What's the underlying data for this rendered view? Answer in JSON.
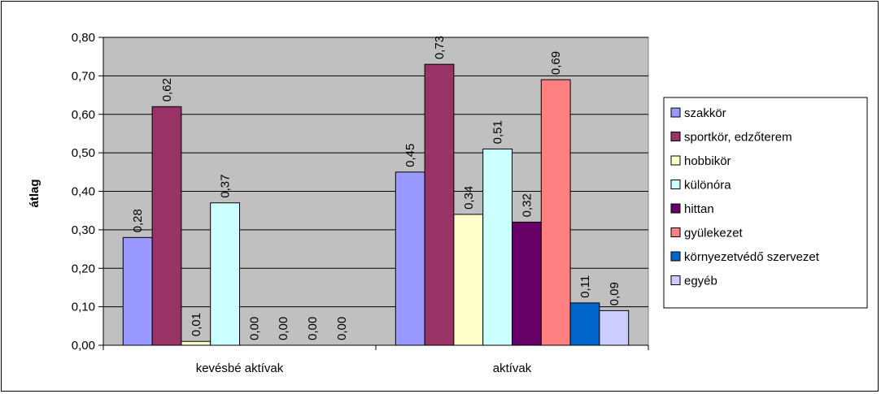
{
  "chart_data": {
    "type": "bar",
    "title": "",
    "xlabel": "",
    "ylabel": "átlag",
    "ylim": [
      0,
      0.8
    ],
    "yticks": [
      "0,00",
      "0,10",
      "0,20",
      "0,30",
      "0,40",
      "0,50",
      "0,60",
      "0,70",
      "0,80"
    ],
    "grid": true,
    "legend_position": "right",
    "categories": [
      "kevésbé aktívak",
      "aktívak"
    ],
    "series": [
      {
        "name": "szakkör",
        "color": "#9999ff",
        "values": [
          0.28,
          0.45
        ],
        "labels": [
          "0,28",
          "0,45"
        ]
      },
      {
        "name": "sportkör, edzőterem",
        "color": "#993366",
        "values": [
          0.62,
          0.73
        ],
        "labels": [
          "0,62",
          "0,73"
        ]
      },
      {
        "name": "hobbikör",
        "color": "#ffffcc",
        "values": [
          0.01,
          0.34
        ],
        "labels": [
          "0,01",
          "0,34"
        ]
      },
      {
        "name": "különóra",
        "color": "#ccffff",
        "values": [
          0.37,
          0.51
        ],
        "labels": [
          "0,37",
          "0,51"
        ]
      },
      {
        "name": "hittan",
        "color": "#660066",
        "values": [
          0.0,
          0.32
        ],
        "labels": [
          "0,00",
          "0,32"
        ]
      },
      {
        "name": "gyülekezet",
        "color": "#ff8080",
        "values": [
          0.0,
          0.69
        ],
        "labels": [
          "0,00",
          "0,69"
        ]
      },
      {
        "name": "környezetvédő szervezet",
        "color": "#0066cc",
        "values": [
          0.0,
          0.11
        ],
        "labels": [
          "0,00",
          "0,11"
        ]
      },
      {
        "name": "egyéb",
        "color": "#ccccff",
        "values": [
          0.0,
          0.09
        ],
        "labels": [
          "0,00",
          "0,09"
        ]
      }
    ],
    "plot_background": "#c0c0c0"
  }
}
